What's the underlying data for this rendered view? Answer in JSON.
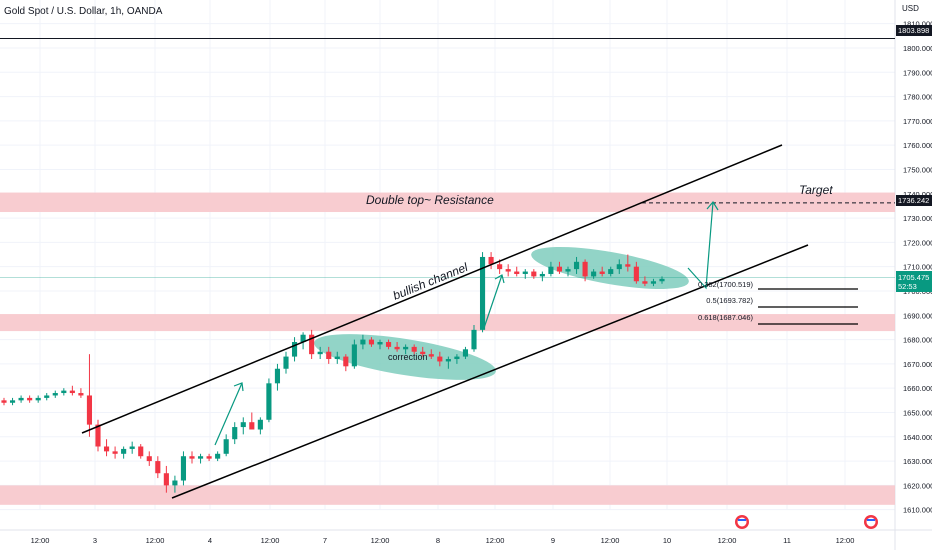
{
  "header": {
    "symbol_title": "Gold Spot / U.S. Dollar, 1h, OANDA",
    "currency": "USD"
  },
  "colors": {
    "up": "#089981",
    "down": "#f23645",
    "zone": "#f7c6cb",
    "ellipse": "#7fcdbd",
    "arrow": "#089981",
    "channel": "#000000",
    "grid": "#f0f3fa",
    "current_price_bg": "#089981"
  },
  "chart_data": {
    "type": "candlestick",
    "y_axis": {
      "min": 1605,
      "max": 1815,
      "ticks": [
        1610,
        1620,
        1630,
        1640,
        1650,
        1660,
        1670,
        1680,
        1690,
        1700,
        1710,
        1720,
        1730,
        1740,
        1750,
        1760,
        1770,
        1780,
        1790,
        1800,
        1810
      ]
    },
    "x_axis": {
      "labels": [
        "12:00",
        "3",
        "12:00",
        "4",
        "12:00",
        "7",
        "12:00",
        "8",
        "12:00",
        "9",
        "12:00",
        "10",
        "12:00",
        "11",
        "12:00"
      ]
    },
    "price_labels": {
      "top_line": "1803.898",
      "target": "1736.242",
      "current": "1705.475",
      "countdown": "52:53"
    },
    "candles": [
      [
        1655,
        1656,
        1653,
        1654
      ],
      [
        1654,
        1656,
        1653,
        1655
      ],
      [
        1655,
        1657,
        1654,
        1656
      ],
      [
        1656,
        1657,
        1654,
        1655
      ],
      [
        1655,
        1657,
        1654,
        1656
      ],
      [
        1656,
        1658,
        1655,
        1657
      ],
      [
        1657,
        1659,
        1656,
        1658
      ],
      [
        1658,
        1660,
        1657,
        1659
      ],
      [
        1659,
        1661,
        1657,
        1658
      ],
      [
        1658,
        1660,
        1656,
        1657
      ],
      [
        1657,
        1674,
        1640,
        1645
      ],
      [
        1645,
        1647,
        1634,
        1636
      ],
      [
        1636,
        1639,
        1632,
        1634
      ],
      [
        1634,
        1636,
        1631,
        1633
      ],
      [
        1633,
        1636,
        1631,
        1635
      ],
      [
        1635,
        1638,
        1633,
        1636
      ],
      [
        1636,
        1637,
        1631,
        1632
      ],
      [
        1632,
        1634,
        1628,
        1630
      ],
      [
        1630,
        1632,
        1623,
        1625
      ],
      [
        1625,
        1628,
        1617,
        1620
      ],
      [
        1620,
        1624,
        1617,
        1622
      ],
      [
        1622,
        1634,
        1620,
        1632
      ],
      [
        1632,
        1634,
        1629,
        1631
      ],
      [
        1631,
        1633,
        1629,
        1632
      ],
      [
        1632,
        1633,
        1630,
        1631
      ],
      [
        1631,
        1634,
        1630,
        1633
      ],
      [
        1633,
        1641,
        1632,
        1639
      ],
      [
        1639,
        1646,
        1637,
        1644
      ],
      [
        1644,
        1648,
        1641,
        1646
      ],
      [
        1646,
        1650,
        1643,
        1643
      ],
      [
        1643,
        1648,
        1641,
        1647
      ],
      [
        1647,
        1664,
        1646,
        1662
      ],
      [
        1662,
        1670,
        1659,
        1668
      ],
      [
        1668,
        1675,
        1666,
        1673
      ],
      [
        1673,
        1681,
        1671,
        1679
      ],
      [
        1679,
        1683,
        1676,
        1682
      ],
      [
        1682,
        1684,
        1672,
        1674
      ],
      [
        1674,
        1677,
        1672,
        1675
      ],
      [
        1675,
        1677,
        1670,
        1672
      ],
      [
        1672,
        1675,
        1670,
        1673
      ],
      [
        1673,
        1674,
        1667,
        1669
      ],
      [
        1669,
        1680,
        1668,
        1678
      ],
      [
        1678,
        1682,
        1676,
        1680
      ],
      [
        1680,
        1681,
        1677,
        1678
      ],
      [
        1678,
        1680,
        1676,
        1679
      ],
      [
        1679,
        1680,
        1676,
        1677
      ],
      [
        1677,
        1679,
        1675,
        1676
      ],
      [
        1676,
        1678,
        1674,
        1677
      ],
      [
        1677,
        1678,
        1674,
        1675
      ],
      [
        1675,
        1677,
        1673,
        1674
      ],
      [
        1674,
        1676,
        1672,
        1673
      ],
      [
        1673,
        1675,
        1669,
        1671
      ],
      [
        1671,
        1673,
        1668,
        1672
      ],
      [
        1672,
        1674,
        1670,
        1673
      ],
      [
        1673,
        1677,
        1672,
        1676
      ],
      [
        1676,
        1686,
        1675,
        1684
      ],
      [
        1684,
        1716,
        1683,
        1714
      ],
      [
        1714,
        1716,
        1709,
        1711
      ],
      [
        1711,
        1713,
        1707,
        1709
      ],
      [
        1709,
        1711,
        1706,
        1708
      ],
      [
        1708,
        1710,
        1706,
        1707
      ],
      [
        1707,
        1709,
        1705,
        1708
      ],
      [
        1708,
        1709,
        1705,
        1706
      ],
      [
        1706,
        1708,
        1704,
        1707
      ],
      [
        1707,
        1712,
        1706,
        1710
      ],
      [
        1710,
        1712,
        1707,
        1708
      ],
      [
        1708,
        1710,
        1706,
        1709
      ],
      [
        1709,
        1714,
        1707,
        1712
      ],
      [
        1712,
        1713,
        1704,
        1706
      ],
      [
        1706,
        1709,
        1705,
        1708
      ],
      [
        1708,
        1710,
        1706,
        1707
      ],
      [
        1707,
        1710,
        1706,
        1709
      ],
      [
        1709,
        1713,
        1707,
        1711
      ],
      [
        1711,
        1715,
        1708,
        1710
      ],
      [
        1710,
        1712,
        1703,
        1704
      ],
      [
        1704,
        1706,
        1702,
        1703
      ],
      [
        1703,
        1705,
        1702,
        1704
      ],
      [
        1704,
        1706,
        1703,
        1705
      ]
    ],
    "levels": [
      {
        "name": "top-line",
        "value": 1803.898
      },
      {
        "name": "target-line",
        "value": 1736.242
      }
    ],
    "zones": [
      {
        "name": "resistance-zone",
        "from": 1732.5,
        "to": 1740.5
      },
      {
        "name": "support-zone-mid",
        "from": 1683.5,
        "to": 1690.5
      },
      {
        "name": "support-zone-low",
        "from": 1612,
        "to": 1620
      }
    ],
    "annotations": {
      "resistance": "Double top~ Resistance",
      "channel": "bullish channel",
      "correction": "correction",
      "target": "Target"
    },
    "fibonacci": [
      {
        "label": "0.382(1700.519)",
        "value": 1700.519
      },
      {
        "label": "0.5(1693.782)",
        "value": 1693.782
      },
      {
        "label": "0.618(1687.046)",
        "value": 1687.046
      }
    ],
    "grid": true
  }
}
